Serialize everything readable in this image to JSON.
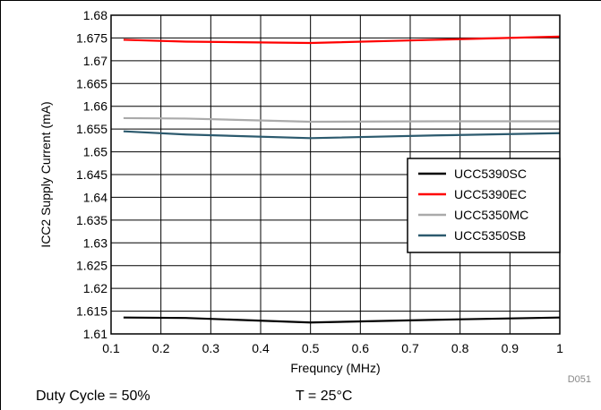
{
  "figure_id": "D051",
  "footer": {
    "duty_cycle": "Duty Cycle = 50%",
    "temperature": "T = 25°C"
  },
  "chart_data": {
    "type": "line",
    "title": "",
    "xlabel": "Frequncy (MHz)",
    "ylabel": "ICC2 Supply Current (mA)",
    "xlim": [
      0.1,
      1
    ],
    "ylim": [
      1.61,
      1.68
    ],
    "x_ticks": [
      "0.1",
      "0.2",
      "0.3",
      "0.4",
      "0.5",
      "0.6",
      "0.7",
      "0.8",
      "0.9",
      "1"
    ],
    "y_ticks": [
      "1.61",
      "1.615",
      "1.62",
      "1.625",
      "1.63",
      "1.635",
      "1.64",
      "1.645",
      "1.65",
      "1.655",
      "1.66",
      "1.665",
      "1.67",
      "1.675",
      "1.68"
    ],
    "grid": true,
    "legend_position": "right",
    "series": [
      {
        "name": "UCC5390SC",
        "color": "#000000",
        "x": [
          0.125,
          0.25,
          0.5,
          0.75,
          1.0
        ],
        "y": [
          1.6136,
          1.6135,
          1.6125,
          1.6131,
          1.6136
        ]
      },
      {
        "name": "UCC5390EC",
        "color": "#ff0000",
        "x": [
          0.125,
          0.25,
          0.5,
          0.75,
          1.0
        ],
        "y": [
          1.6746,
          1.6742,
          1.6739,
          1.6746,
          1.6753
        ]
      },
      {
        "name": "UCC5350MC",
        "color": "#aaaaaa",
        "x": [
          0.125,
          0.25,
          0.5,
          0.75,
          1.0
        ],
        "y": [
          1.6574,
          1.6573,
          1.6566,
          1.6567,
          1.6567
        ]
      },
      {
        "name": "UCC5350SB",
        "color": "#2c5a6e",
        "x": [
          0.125,
          0.25,
          0.5,
          0.75,
          1.0
        ],
        "y": [
          1.6545,
          1.6538,
          1.653,
          1.6536,
          1.6541
        ]
      }
    ]
  }
}
